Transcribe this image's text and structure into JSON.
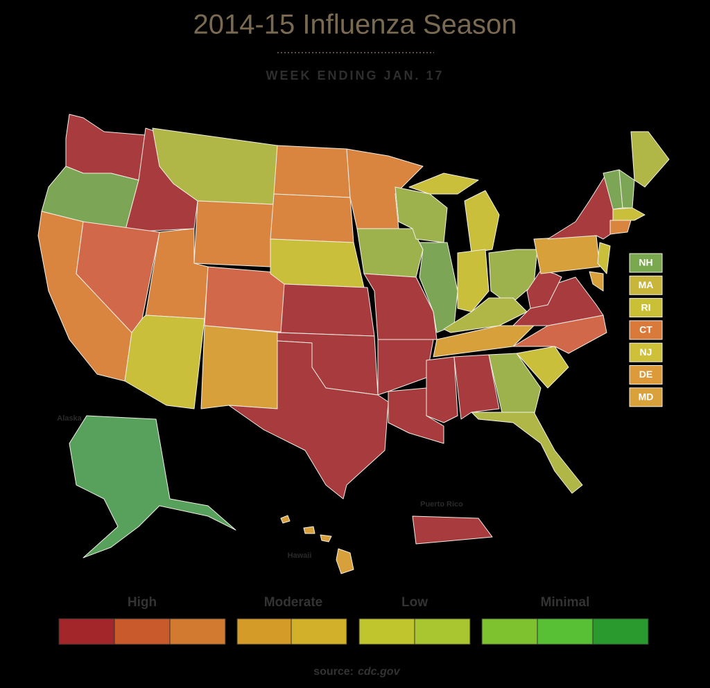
{
  "title": "2014-15 Influenza Season",
  "subtitle": "WEEK ENDING JAN. 17",
  "map_labels": {
    "alaska": "Alaska",
    "hawaii": "Hawaii",
    "puerto_rico": "Puerto Rico"
  },
  "small_states": [
    "NH",
    "MA",
    "RI",
    "CT",
    "NJ",
    "DE",
    "MD"
  ],
  "legend": [
    "High",
    "Moderate",
    "Low",
    "Minimal"
  ],
  "source": {
    "label": "source:",
    "site": "cdc.gov"
  }
}
